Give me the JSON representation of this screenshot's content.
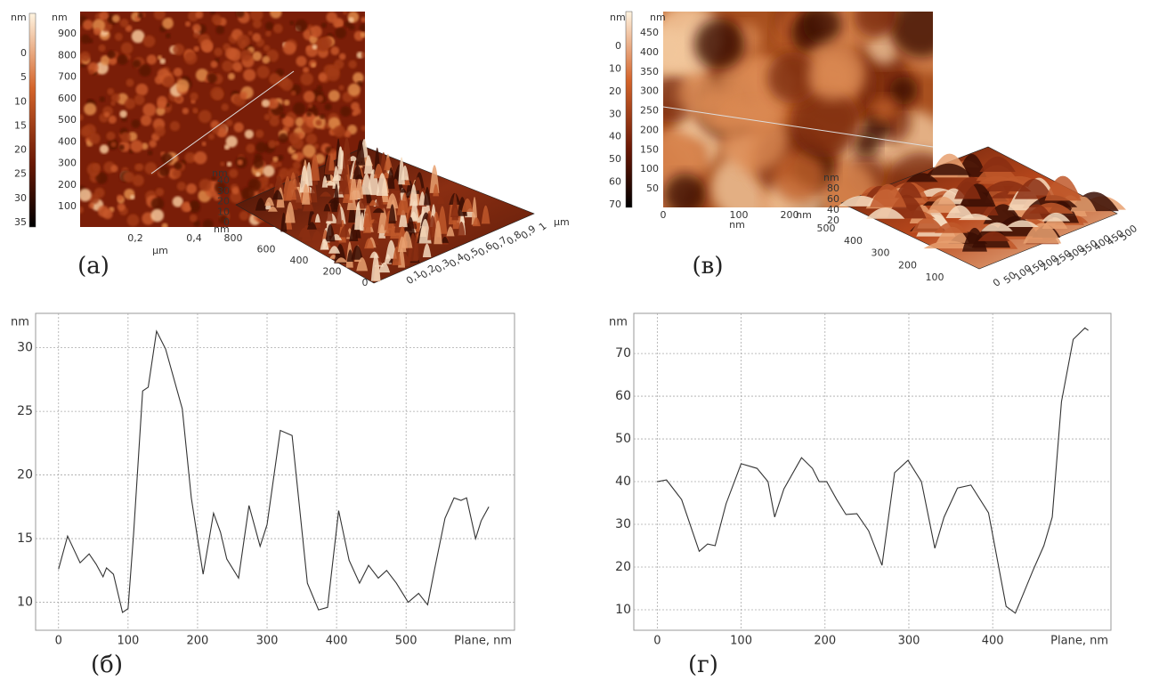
{
  "panels": [
    {
      "label": "(а)",
      "colorbar": {
        "unit": "nm",
        "ticks": [
          35,
          30,
          25,
          20,
          15,
          10,
          5,
          0
        ]
      },
      "image": {
        "y_unit": "nm",
        "y_ticks": [
          900,
          800,
          700,
          600,
          500,
          400,
          300,
          200,
          100
        ],
        "x_ticks": [
          "0,2",
          "0,4"
        ],
        "x_unit": "µm"
      },
      "surface": {
        "z_unit": "nm",
        "z_ticks": [
          40,
          30,
          20,
          10,
          0
        ],
        "y_unit": "nm",
        "y_ticks": [
          800,
          600,
          400,
          200,
          0
        ],
        "x_ticks": [
          "0,1",
          "0,2",
          "0,3",
          "0,4",
          "0,5",
          "0,6",
          "0,7",
          "0,8",
          "0,9",
          "1"
        ],
        "x_unit": "µm"
      }
    },
    {
      "label": "(в)",
      "colorbar": {
        "unit": "nm",
        "ticks": [
          70,
          60,
          50,
          40,
          30,
          20,
          10,
          0
        ]
      },
      "image": {
        "y_unit": "nm",
        "y_ticks": [
          450,
          400,
          350,
          300,
          250,
          200,
          150,
          100,
          50
        ],
        "x_ticks": [
          0,
          100,
          200
        ],
        "x_tick_unit": "nm",
        "x_unit": "nm"
      },
      "surface": {
        "z_unit": "nm",
        "z_ticks": [
          80,
          60,
          40,
          20
        ],
        "y_ticks": [
          500,
          400,
          300,
          200,
          100
        ],
        "x_ticks": [
          0,
          50,
          100,
          150,
          200,
          250,
          300,
          350,
          400,
          450,
          500
        ]
      }
    }
  ],
  "chart_data": [
    {
      "type": "line",
      "label": "(б)",
      "ylabel": "nm",
      "xlabel": "Plane, nm",
      "color": "#333333",
      "grid": true,
      "xlim": [
        -33,
        656
      ],
      "ylim": [
        7.8,
        32.7
      ],
      "xticks": [
        0,
        100,
        200,
        300,
        400,
        500
      ],
      "yticks": [
        10,
        15,
        20,
        25,
        30
      ],
      "x": [
        0,
        13,
        31,
        44,
        54,
        64,
        69,
        79,
        92,
        100,
        108,
        121,
        129,
        141,
        154,
        178,
        191,
        208,
        223,
        233,
        242,
        259,
        274,
        290,
        300,
        319,
        336,
        358,
        374,
        387,
        403,
        418,
        433,
        446,
        460,
        472,
        486,
        503,
        518,
        531,
        541,
        556,
        569,
        579,
        587,
        600,
        608,
        619
      ],
      "values": [
        12.6,
        15.2,
        13.1,
        13.8,
        13.0,
        12.0,
        12.7,
        12.2,
        9.2,
        9.5,
        15.4,
        26.6,
        26.9,
        31.3,
        29.9,
        25.2,
        18.2,
        12.2,
        17.0,
        15.5,
        13.4,
        11.9,
        17.6,
        14.4,
        16.1,
        23.5,
        23.1,
        11.5,
        9.4,
        9.6,
        17.2,
        13.3,
        11.5,
        12.9,
        11.9,
        12.5,
        11.5,
        10.0,
        10.7,
        9.8,
        12.6,
        16.6,
        18.2,
        18.0,
        18.2,
        15.0,
        16.4,
        17.5
      ]
    },
    {
      "type": "line",
      "label": "(г)",
      "ylabel": "nm",
      "xlabel": "Plane, nm",
      "color": "#333333",
      "grid": true,
      "xlim": [
        -28,
        541
      ],
      "ylim": [
        5.2,
        79.4
      ],
      "xticks": [
        0,
        100,
        200,
        300,
        400
      ],
      "yticks": [
        10,
        20,
        30,
        40,
        50,
        60,
        70
      ],
      "x": [
        0,
        11,
        29,
        50,
        60,
        69,
        82,
        100,
        119,
        132,
        140,
        151,
        172,
        185,
        193,
        202,
        214,
        225,
        238,
        252,
        268,
        283,
        299,
        315,
        331,
        342,
        358,
        374,
        395,
        416,
        427,
        448,
        461,
        471,
        482,
        496,
        510,
        514
      ],
      "values": [
        40,
        40.4,
        35.8,
        23.7,
        25.4,
        25,
        34.8,
        44.2,
        43.1,
        40,
        31.7,
        38.3,
        45.6,
        43.1,
        40,
        40,
        35.8,
        32.3,
        32.5,
        28.5,
        20.4,
        42.1,
        45,
        40,
        24.4,
        31.7,
        38.5,
        39.2,
        32.7,
        10.8,
        9.2,
        19.2,
        25,
        31.7,
        58.7,
        73.3,
        76.0,
        75.4
      ]
    }
  ]
}
